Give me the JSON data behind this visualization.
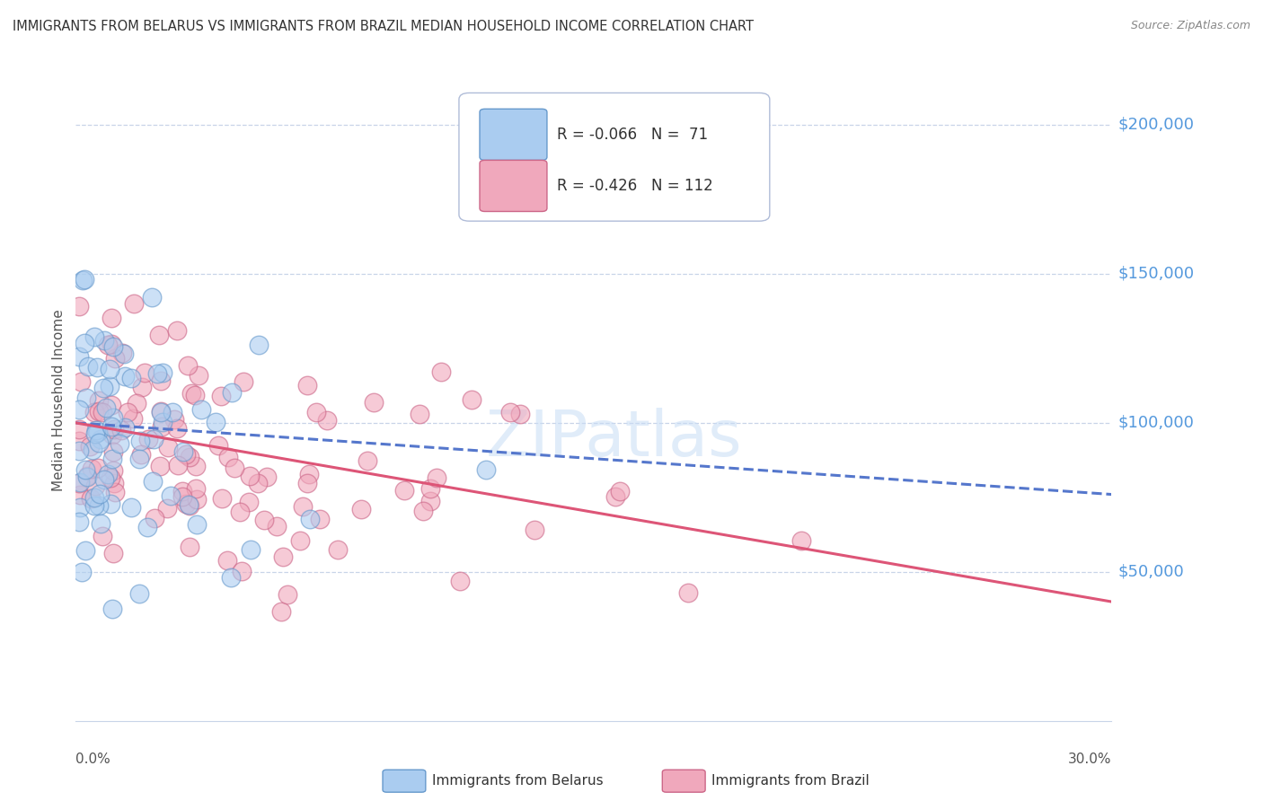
{
  "title": "IMMIGRANTS FROM BELARUS VS IMMIGRANTS FROM BRAZIL MEDIAN HOUSEHOLD INCOME CORRELATION CHART",
  "source": "Source: ZipAtlas.com",
  "ylabel": "Median Household Income",
  "ylim": [
    0,
    215000
  ],
  "xlim": [
    0.0,
    0.3
  ],
  "watermark": "ZIPatlas",
  "belarus_color": "#aaccf0",
  "brazil_color": "#f0a8bc",
  "belarus_edge": "#6699cc",
  "brazil_edge": "#cc6688",
  "belarus_line_color": "#5577cc",
  "brazil_line_color": "#dd5577",
  "background_color": "#ffffff",
  "grid_color": "#c8d4e8",
  "title_color": "#333333",
  "axis_label_color": "#555555",
  "ytick_color": "#5599dd",
  "belarus_intercept": 100000,
  "belarus_slope": -80000,
  "brazil_intercept": 100000,
  "brazil_slope": -200000,
  "scatter_seed": 77,
  "belarus_N": 71,
  "brazil_N": 112
}
